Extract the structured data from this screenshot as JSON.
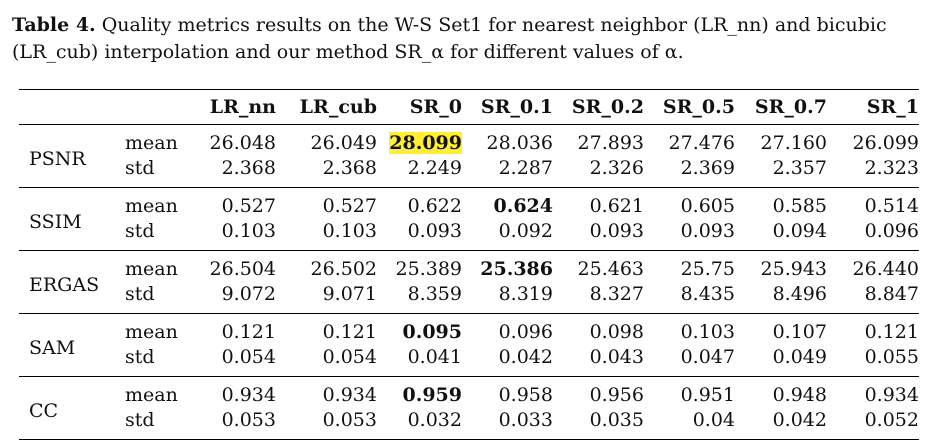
{
  "caption": {
    "label": "Table 4.",
    "text": "Quality metrics results on the W-S Set1 for nearest neighbor (LR_nn) and bicubic (LR_cub) interpolation and our method SR_α for different values of α."
  },
  "table": {
    "columns": [
      "LR_nn",
      "LR_cub",
      "SR_0",
      "SR_0.1",
      "SR_0.2",
      "SR_0.5",
      "SR_0.7",
      "SR_1"
    ],
    "groups": [
      {
        "metric": "PSNR",
        "rows": [
          {
            "stat": "mean",
            "values": [
              "26.048",
              "26.049",
              "28.099",
              "28.036",
              "27.893",
              "27.476",
              "27.160",
              "26.099"
            ]
          },
          {
            "stat": "std",
            "values": [
              "2.368",
              "2.368",
              "2.249",
              "2.287",
              "2.326",
              "2.369",
              "2.357",
              "2.323"
            ]
          }
        ]
      },
      {
        "metric": "SSIM",
        "rows": [
          {
            "stat": "mean",
            "values": [
              "0.527",
              "0.527",
              "0.622",
              "0.624",
              "0.621",
              "0.605",
              "0.585",
              "0.514"
            ]
          },
          {
            "stat": "std",
            "values": [
              "0.103",
              "0.103",
              "0.093",
              "0.092",
              "0.093",
              "0.093",
              "0.094",
              "0.096"
            ]
          }
        ]
      },
      {
        "metric": "ERGAS",
        "rows": [
          {
            "stat": "mean",
            "values": [
              "26.504",
              "26.502",
              "25.389",
              "25.386",
              "25.463",
              "25.75",
              "25.943",
              "26.440"
            ]
          },
          {
            "stat": "std",
            "values": [
              "9.072",
              "9.071",
              "8.359",
              "8.319",
              "8.327",
              "8.435",
              "8.496",
              "8.847"
            ]
          }
        ]
      },
      {
        "metric": "SAM",
        "rows": [
          {
            "stat": "mean",
            "values": [
              "0.121",
              "0.121",
              "0.095",
              "0.096",
              "0.098",
              "0.103",
              "0.107",
              "0.121"
            ]
          },
          {
            "stat": "std",
            "values": [
              "0.054",
              "0.054",
              "0.041",
              "0.042",
              "0.043",
              "0.047",
              "0.049",
              "0.055"
            ]
          }
        ]
      },
      {
        "metric": "CC",
        "rows": [
          {
            "stat": "mean",
            "values": [
              "0.934",
              "0.934",
              "0.959",
              "0.958",
              "0.956",
              "0.951",
              "0.948",
              "0.934"
            ]
          },
          {
            "stat": "std",
            "values": [
              "0.053",
              "0.053",
              "0.032",
              "0.033",
              "0.035",
              "0.04",
              "0.042",
              "0.052"
            ]
          }
        ]
      }
    ],
    "highlight_color": "#ffee33"
  }
}
